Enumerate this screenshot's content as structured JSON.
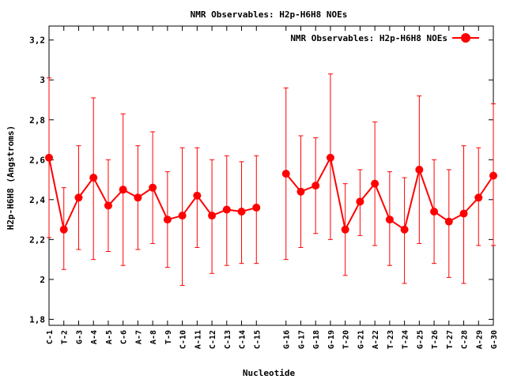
{
  "chart_data": {
    "type": "line",
    "title": "NMR Observables: H2p-H6H8 NOEs",
    "xlabel": "Nucleotide",
    "ylabel": "H2p-H6H8 (Angstroms)",
    "ylim": [
      1.77,
      3.27
    ],
    "yticks": [
      1.8,
      2,
      2.2,
      2.4,
      2.6,
      2.8,
      3,
      3.2
    ],
    "ytick_labels": [
      "1,8",
      "2",
      "2,2",
      "2,4",
      "2,6",
      "2,8",
      "3",
      "3,2"
    ],
    "grid": false,
    "legend": "top-right",
    "series_color": "#ff0000",
    "categories": [
      "C-1",
      "T-2",
      "G-3",
      "A-4",
      "A-5",
      "C-6",
      "A-7",
      "A-8",
      "T-9",
      "C-10",
      "A-11",
      "C-12",
      "C-13",
      "C-14",
      "C-15",
      "G-16",
      "G-17",
      "G-18",
      "G-19",
      "T-20",
      "G-21",
      "A-22",
      "T-23",
      "T-24",
      "G-25",
      "T-26",
      "T-27",
      "C-28",
      "A-29",
      "G-30"
    ],
    "x": [
      1,
      2,
      3,
      4,
      5,
      6,
      7,
      8,
      9,
      10,
      11,
      12,
      13,
      14,
      15,
      17,
      18,
      19,
      20,
      21,
      22,
      23,
      24,
      25,
      26,
      27,
      28,
      29,
      30,
      31
    ],
    "xlim": [
      1,
      31
    ],
    "series": [
      {
        "name": "NMR Observables: H2p-H6H8 NOEs",
        "values": [
          2.61,
          2.25,
          2.41,
          2.51,
          2.37,
          2.45,
          2.41,
          2.46,
          2.3,
          2.32,
          2.42,
          2.32,
          2.35,
          2.34,
          2.36,
          2.53,
          2.44,
          2.47,
          2.61,
          2.25,
          2.39,
          2.48,
          2.3,
          2.25,
          2.55,
          2.34,
          2.29,
          2.33,
          2.41,
          2.52
        ],
        "err_low": [
          2.21,
          2.05,
          2.15,
          2.1,
          2.14,
          2.07,
          2.15,
          2.18,
          2.06,
          1.97,
          2.16,
          2.03,
          2.07,
          2.08,
          2.08,
          2.1,
          2.16,
          2.23,
          2.2,
          2.02,
          2.22,
          2.17,
          2.07,
          1.98,
          2.18,
          2.08,
          2.01,
          1.98,
          2.17,
          2.17
        ],
        "err_high": [
          3.01,
          2.46,
          2.67,
          2.91,
          2.6,
          2.83,
          2.67,
          2.74,
          2.54,
          2.66,
          2.66,
          2.6,
          2.62,
          2.59,
          2.62,
          2.96,
          2.72,
          2.71,
          3.03,
          2.48,
          2.55,
          2.79,
          2.54,
          2.51,
          2.92,
          2.6,
          2.55,
          2.67,
          2.66,
          2.88
        ],
        "segments": [
          [
            0,
            14
          ],
          [
            15,
            29
          ]
        ]
      }
    ]
  }
}
